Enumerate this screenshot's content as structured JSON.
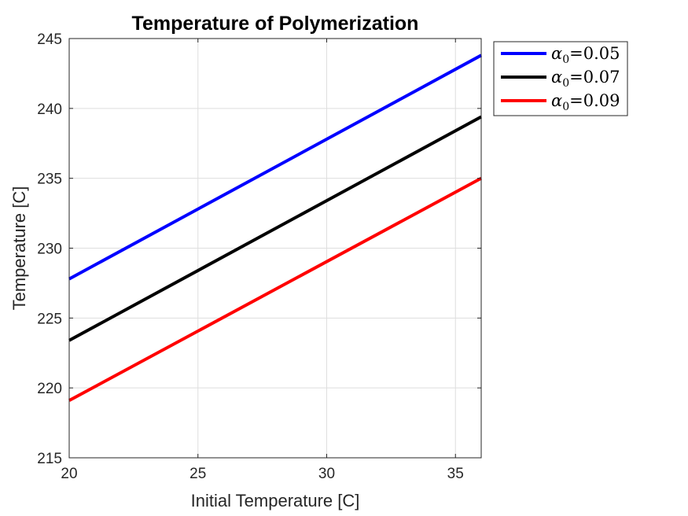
{
  "chart_data": {
    "type": "line",
    "title": "Temperature of Polymerization",
    "xlabel": "Initial Temperature [C]",
    "ylabel": "Temperature [C]",
    "xlim": [
      20,
      36
    ],
    "ylim": [
      215,
      245
    ],
    "xticks": [
      20,
      25,
      30,
      35
    ],
    "yticks": [
      215,
      220,
      225,
      230,
      235,
      240,
      245
    ],
    "grid": true,
    "legend_position": "outside top-right",
    "series": [
      {
        "name": "α0=0.05",
        "symbol": "α",
        "subscript": "0",
        "value": "=0.05",
        "color": "#0000ff",
        "x": [
          20,
          36
        ],
        "y": [
          227.8,
          243.8
        ]
      },
      {
        "name": "α0=0.07",
        "symbol": "α",
        "subscript": "0",
        "value": "=0.07",
        "color": "#000000",
        "x": [
          20,
          36
        ],
        "y": [
          223.4,
          239.4
        ]
      },
      {
        "name": "α0=0.09",
        "symbol": "α",
        "subscript": "0",
        "value": "=0.09",
        "color": "#ff0000",
        "x": [
          20,
          36
        ],
        "y": [
          219.1,
          235.0
        ]
      }
    ]
  }
}
